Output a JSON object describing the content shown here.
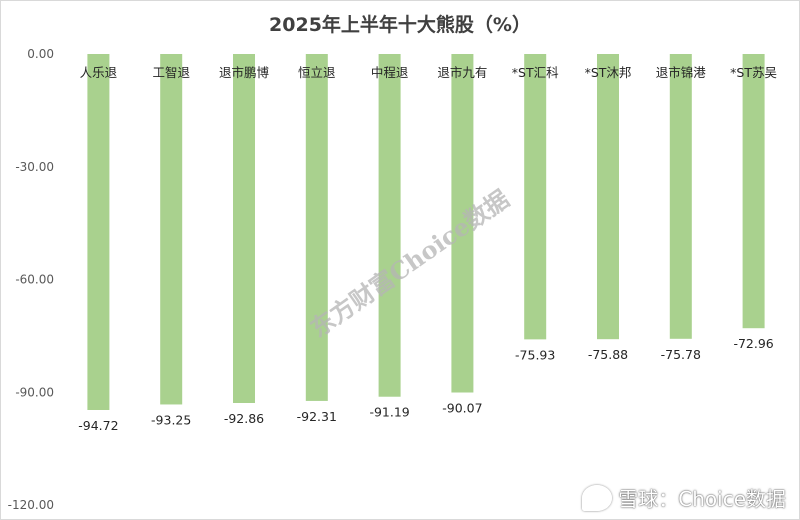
{
  "chart_data": {
    "type": "bar",
    "title": "2025年上半年十大熊股（%）",
    "categories": [
      "人乐退",
      "工智退",
      "退市鹏博",
      "恒立退",
      "中程退",
      "退市九有",
      "*ST汇科",
      "*ST沐邦",
      "退市锦港",
      "*ST苏吴"
    ],
    "values": [
      -94.72,
      -93.25,
      -92.86,
      -92.31,
      -91.19,
      -90.07,
      -75.93,
      -75.88,
      -75.78,
      -72.96
    ],
    "value_labels": [
      "-94.72",
      "-93.25",
      "-92.86",
      "-92.31",
      "-91.19",
      "-90.07",
      "-75.93",
      "-75.88",
      "-75.78",
      "-72.96"
    ],
    "ylim": [
      -120,
      0
    ],
    "yticks": [
      0,
      -30,
      -60,
      -90,
      -120
    ],
    "ytick_labels": [
      "0.00",
      "-30.00",
      "-60.00",
      "-90.00",
      "-120.00"
    ],
    "bar_color": "#a9d18e",
    "grid": false,
    "legend": "none"
  },
  "watermark": "东方财富Choice数据",
  "footer": {
    "logo_text": "雪球：Choice数据"
  }
}
